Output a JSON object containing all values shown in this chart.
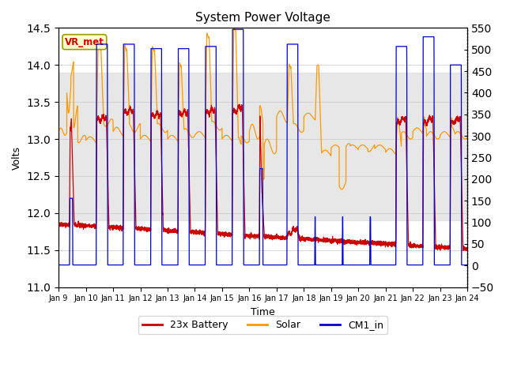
{
  "title": "System Power Voltage",
  "xlabel": "Time",
  "ylabel": "Volts",
  "xlim_start": 0,
  "xlim_end": 15,
  "ylim_left": [
    11.0,
    14.5
  ],
  "ylim_right": [
    -50,
    550
  ],
  "xtick_labels": [
    "Jan 9",
    "Jan 10",
    "Jan 11",
    "Jan 12",
    "Jan 13",
    "Jan 14",
    "Jan 15",
    "Jan 16",
    "Jan 17",
    "Jan 18",
    "Jan 19",
    "Jan 20",
    "Jan 21",
    "Jan 22",
    "Jan 23",
    "Jan 24"
  ],
  "ytick_left": [
    11.0,
    11.5,
    12.0,
    12.5,
    13.0,
    13.5,
    14.0,
    14.5
  ],
  "ytick_right": [
    -50,
    0,
    50,
    100,
    150,
    200,
    250,
    300,
    350,
    400,
    450,
    500,
    550
  ],
  "color_battery": "#cc0000",
  "color_solar": "#ff9900",
  "color_cm1": "#0000cc",
  "legend_labels": [
    "23x Battery",
    "Solar",
    "CM1_in"
  ],
  "vr_met_label": "VR_met",
  "vr_met_color": "#cc0000",
  "shading_lower": 11.9,
  "shading_upper": 13.9,
  "background_color": "#ffffff"
}
